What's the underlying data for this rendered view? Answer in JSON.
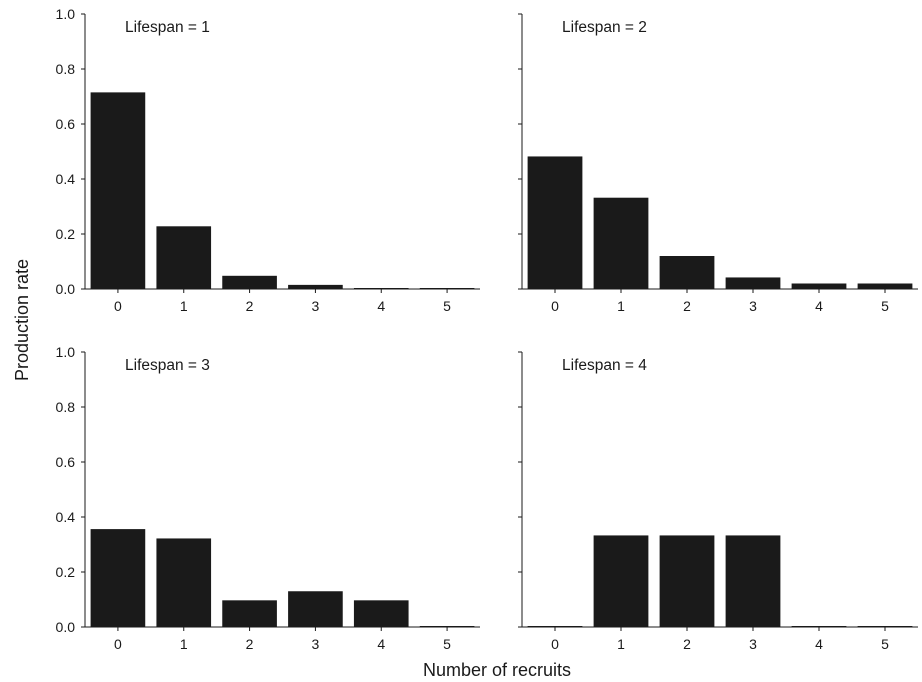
{
  "chart_data": {
    "type": "bar",
    "xlabel": "Number of recruits",
    "ylabel": "Production rate",
    "ylim": [
      0,
      1.0
    ],
    "yticks": [
      "0.0",
      "0.2",
      "0.4",
      "0.6",
      "0.8",
      "1.0"
    ],
    "categories": [
      "0",
      "1",
      "2",
      "3",
      "4",
      "5"
    ],
    "bar_color": "#1a1a1a",
    "grid": false,
    "panels": [
      {
        "title": "Lifespan = 1",
        "values": [
          0.715,
          0.228,
          0.048,
          0.015,
          0.0,
          0.0
        ]
      },
      {
        "title": "Lifespan = 2",
        "values": [
          0.482,
          0.332,
          0.12,
          0.042,
          0.02,
          0.02
        ]
      },
      {
        "title": "Lifespan = 3",
        "values": [
          0.356,
          0.322,
          0.097,
          0.13,
          0.097,
          0.0
        ]
      },
      {
        "title": "Lifespan = 4",
        "values": [
          0.0,
          0.333,
          0.333,
          0.333,
          0.0,
          0.0
        ]
      }
    ]
  }
}
